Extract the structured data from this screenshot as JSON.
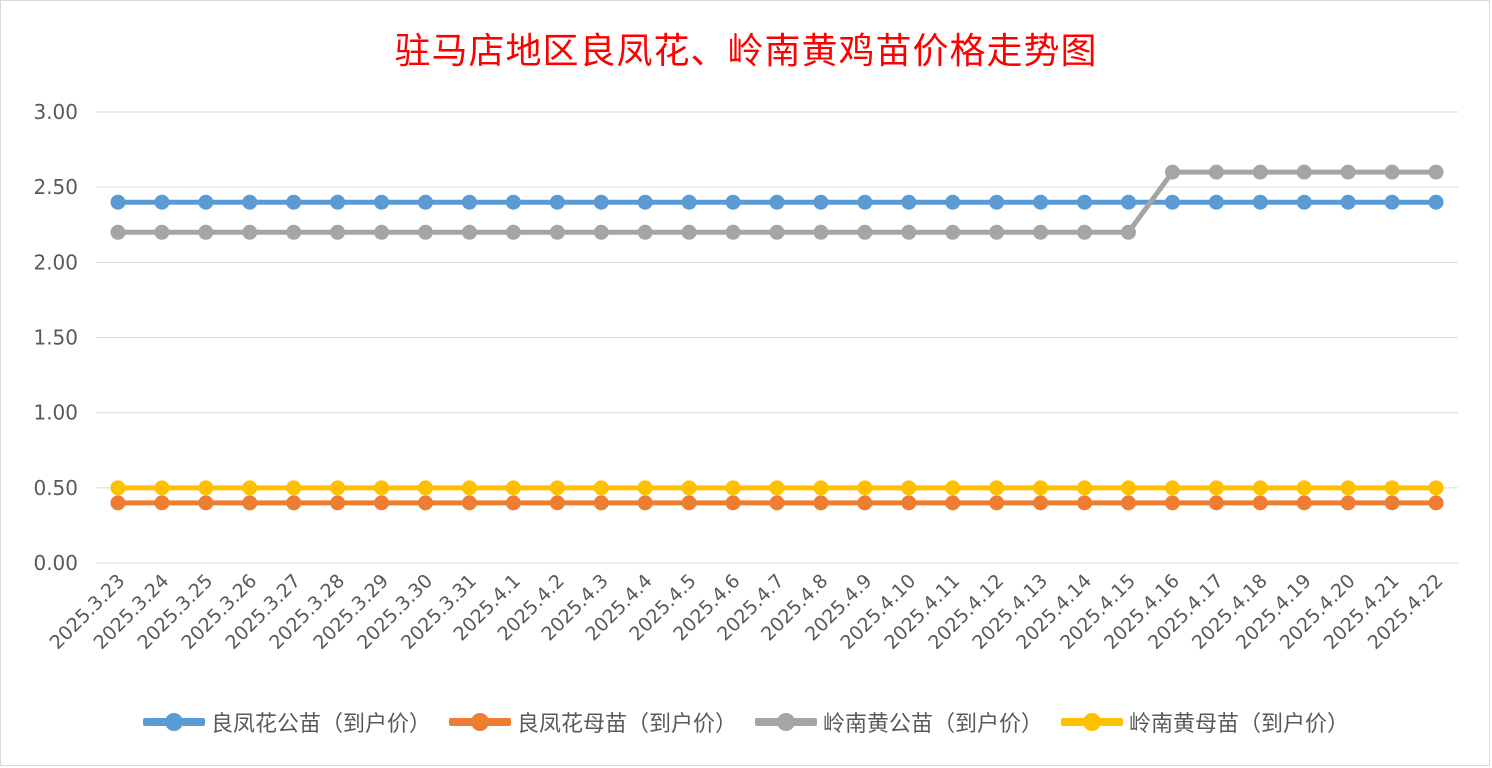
{
  "chart_data": {
    "type": "line",
    "title": "驻马店地区良凤花、岭南黄鸡苗价格走势图",
    "xlabel": "",
    "ylabel": "",
    "ylim": [
      0,
      3
    ],
    "yticks": [
      "0.00",
      "0.50",
      "1.00",
      "1.50",
      "2.00",
      "2.50",
      "3.00"
    ],
    "grid": true,
    "legend_position": "bottom",
    "categories": [
      "2025.3.23",
      "2025.3.24",
      "2025.3.25",
      "2025.3.26",
      "2025.3.27",
      "2025.3.28",
      "2025.3.29",
      "2025.3.30",
      "2025.3.31",
      "2025.4.1",
      "2025.4.2",
      "2025.4.3",
      "2025.4.4",
      "2025.4.5",
      "2025.4.6",
      "2025.4.7",
      "2025.4.8",
      "2025.4.9",
      "2025.4.10",
      "2025.4.11",
      "2025.4.12",
      "2025.4.13",
      "2025.4.14",
      "2025.4.15",
      "2025.4.16",
      "2025.4.17",
      "2025.4.18",
      "2025.4.19",
      "2025.4.20",
      "2025.4.21",
      "2025.4.22"
    ],
    "series": [
      {
        "name": "良凤花公苗（到户价）",
        "color": "#5b9bd5",
        "values": [
          2.4,
          2.4,
          2.4,
          2.4,
          2.4,
          2.4,
          2.4,
          2.4,
          2.4,
          2.4,
          2.4,
          2.4,
          2.4,
          2.4,
          2.4,
          2.4,
          2.4,
          2.4,
          2.4,
          2.4,
          2.4,
          2.4,
          2.4,
          2.4,
          2.4,
          2.4,
          2.4,
          2.4,
          2.4,
          2.4,
          2.4
        ]
      },
      {
        "name": "良凤花母苗（到户价）",
        "color": "#ed7d31",
        "values": [
          0.4,
          0.4,
          0.4,
          0.4,
          0.4,
          0.4,
          0.4,
          0.4,
          0.4,
          0.4,
          0.4,
          0.4,
          0.4,
          0.4,
          0.4,
          0.4,
          0.4,
          0.4,
          0.4,
          0.4,
          0.4,
          0.4,
          0.4,
          0.4,
          0.4,
          0.4,
          0.4,
          0.4,
          0.4,
          0.4,
          0.4
        ]
      },
      {
        "name": "岭南黄公苗（到户价）",
        "color": "#a5a5a5",
        "values": [
          2.2,
          2.2,
          2.2,
          2.2,
          2.2,
          2.2,
          2.2,
          2.2,
          2.2,
          2.2,
          2.2,
          2.2,
          2.2,
          2.2,
          2.2,
          2.2,
          2.2,
          2.2,
          2.2,
          2.2,
          2.2,
          2.2,
          2.2,
          2.2,
          2.6,
          2.6,
          2.6,
          2.6,
          2.6,
          2.6,
          2.6
        ]
      },
      {
        "name": "岭南黄母苗（到户价）",
        "color": "#ffc000",
        "values": [
          0.5,
          0.5,
          0.5,
          0.5,
          0.5,
          0.5,
          0.5,
          0.5,
          0.5,
          0.5,
          0.5,
          0.5,
          0.5,
          0.5,
          0.5,
          0.5,
          0.5,
          0.5,
          0.5,
          0.5,
          0.5,
          0.5,
          0.5,
          0.5,
          0.5,
          0.5,
          0.5,
          0.5,
          0.5,
          0.5,
          0.5
        ]
      }
    ]
  }
}
